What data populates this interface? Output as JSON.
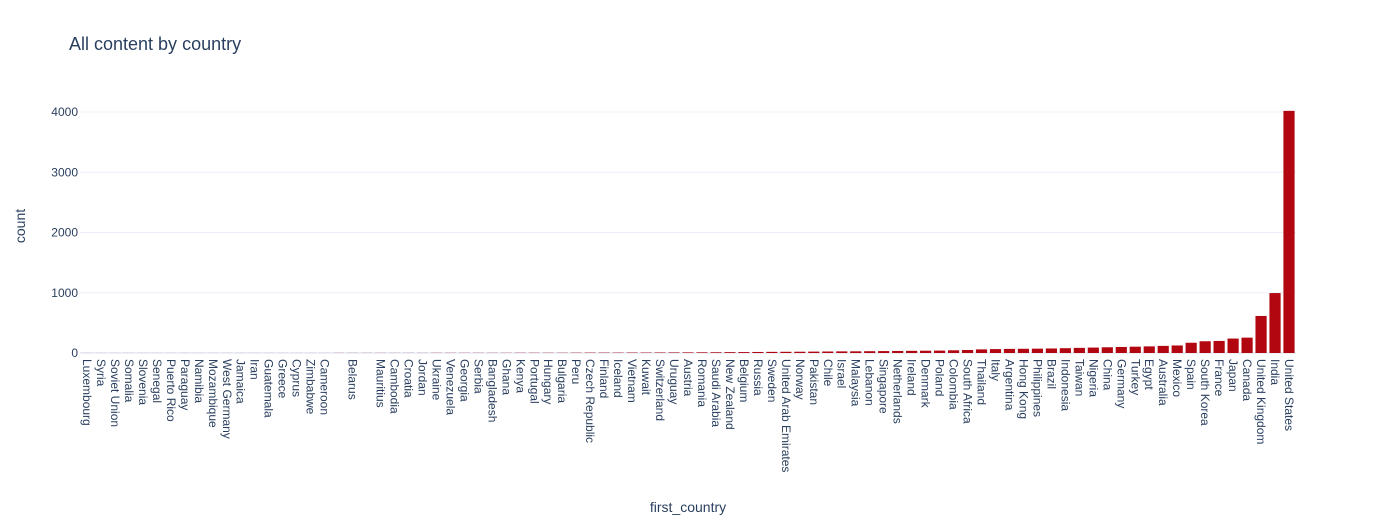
{
  "colors": {
    "bar": "#b20710",
    "text": "#2a3f5f",
    "grid": "#ebf0f8"
  },
  "chart_data": {
    "type": "bar",
    "title": "All content by country",
    "xlabel": "first_country",
    "ylabel": "count",
    "ylim": [
      0,
      4200
    ],
    "yticks": [
      0,
      1000,
      2000,
      3000,
      4000
    ],
    "grid": true,
    "categories": [
      "Luxembourg",
      "Syria",
      "Soviet Union",
      "Somalia",
      "Slovenia",
      "Senegal",
      "Puerto Rico",
      "Paraguay",
      "Namibia",
      "Mozambique",
      "West Germany",
      "Jamaica",
      "Iran",
      "Guatemala",
      "Greece",
      "Cyprus",
      "Zimbabwe",
      "Cameroon",
      "",
      "Belarus",
      "",
      "Mauritius",
      "Cambodia",
      "Croatia",
      "Jordan",
      "Ukraine",
      "Venezuela",
      "Georgia",
      "Serbia",
      "Bangladesh",
      "Ghana",
      "Kenya",
      "Portugal",
      "Hungary",
      "Bulgaria",
      "Peru",
      "Czech Republic",
      "Finland",
      "Iceland",
      "Vietnam",
      "Kuwait",
      "Switzerland",
      "Uruguay",
      "Austria",
      "Romania",
      "Saudi Arabia",
      "New Zealand",
      "Belgium",
      "Russia",
      "Sweden",
      "United Arab Emirates",
      "Norway",
      "Pakistan",
      "Chile",
      "Israel",
      "Malaysia",
      "Lebanon",
      "Singapore",
      "Netherlands",
      "Ireland",
      "Denmark",
      "Poland",
      "Colombia",
      "South Africa",
      "Thailand",
      "Italy",
      "Argentina",
      "Hong Kong",
      "Philippines",
      "Brazil",
      "Indonesia",
      "Taiwan",
      "Nigeria",
      "China",
      "Germany",
      "Turkey",
      "Egypt",
      "Australia",
      "Mexico",
      "Spain",
      "South Korea",
      "France",
      "Japan",
      "Canada",
      "United Kingdom",
      "India",
      "United States"
    ],
    "values": [
      1,
      1,
      1,
      1,
      1,
      1,
      1,
      1,
      1,
      1,
      1,
      1,
      1,
      1,
      1,
      1,
      1,
      1,
      2,
      2,
      2,
      2,
      2,
      2,
      2,
      3,
      3,
      3,
      3,
      3,
      3,
      4,
      4,
      4,
      4,
      5,
      6,
      6,
      6,
      7,
      7,
      8,
      9,
      10,
      11,
      12,
      14,
      15,
      17,
      19,
      20,
      21,
      23,
      25,
      27,
      28,
      30,
      32,
      34,
      36,
      38,
      40,
      45,
      50,
      60,
      65,
      68,
      70,
      72,
      75,
      80,
      85,
      90,
      95,
      100,
      105,
      110,
      118,
      125,
      170,
      195,
      200,
      240,
      255,
      615,
      995,
      4020
    ]
  }
}
